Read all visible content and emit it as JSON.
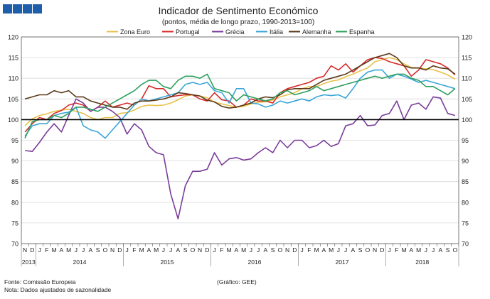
{
  "chart_data": {
    "type": "line",
    "title": "Indicador de Sentimento Económico",
    "subtitle": "(pontos, média de longo prazo, 1990-2013=100)",
    "ylim": [
      70,
      120
    ],
    "y_ticks": [
      70,
      75,
      80,
      85,
      90,
      95,
      100,
      105,
      110,
      115,
      120
    ],
    "reference_line": 100,
    "month_labels": [
      "N",
      "D",
      "J",
      "F",
      "M",
      "A",
      "M",
      "J",
      "J",
      "A",
      "S",
      "O",
      "N",
      "D",
      "J",
      "F",
      "M",
      "A",
      "M",
      "J",
      "J",
      "A",
      "S",
      "O",
      "N",
      "D",
      "J",
      "F",
      "M",
      "A",
      "M",
      "J",
      "J",
      "A",
      "S",
      "O",
      "N",
      "D",
      "J",
      "F",
      "M",
      "A",
      "M",
      "J",
      "J",
      "A",
      "S",
      "O",
      "N",
      "D",
      "J",
      "F",
      "M",
      "A",
      "M",
      "J",
      "J",
      "A",
      "S",
      "O"
    ],
    "years": [
      {
        "label": "2013",
        "start": 0,
        "end": 2
      },
      {
        "label": "2014",
        "start": 2,
        "end": 14
      },
      {
        "label": "2015",
        "start": 14,
        "end": 26
      },
      {
        "label": "2016",
        "start": 26,
        "end": 38
      },
      {
        "label": "2017",
        "start": 38,
        "end": 50
      },
      {
        "label": "2018",
        "start": 50,
        "end": 60
      }
    ],
    "series": [
      {
        "name": "Zona Euro",
        "color": "#e8c24a",
        "values": [
          98.5,
          100.2,
          101.0,
          101.4,
          102.0,
          102.3,
          102.5,
          102.0,
          101.5,
          100.5,
          100.0,
          100.5,
          100.5,
          101.5,
          101.7,
          102.3,
          103.2,
          103.5,
          103.4,
          103.5,
          104.0,
          104.8,
          105.7,
          106.0,
          105.7,
          105.3,
          104.2,
          103.8,
          103.4,
          103.0,
          103.2,
          103.8,
          104.2,
          104.3,
          104.7,
          105.5,
          106.0,
          106.5,
          107.5,
          108.0,
          108.0,
          108.7,
          109.3,
          109.6,
          110.4,
          111.0,
          111.8,
          112.5,
          114.0,
          114.5,
          115.0,
          114.5,
          113.5,
          112.6,
          112.5,
          112.3,
          112.1,
          111.5,
          110.8,
          109.8
        ]
      },
      {
        "name": "Portugal",
        "color": "#d62b2b",
        "values": [
          97.0,
          99.0,
          100.5,
          100.0,
          101.5,
          102.2,
          103.5,
          104.0,
          103.5,
          102.0,
          103.0,
          104.5,
          103.0,
          103.5,
          104.0,
          103.5,
          105.0,
          108.2,
          107.5,
          107.5,
          105.5,
          105.8,
          106.0,
          106.0,
          105.0,
          104.5,
          106.5,
          104.8,
          104.5,
          103.0,
          103.5,
          105.0,
          104.5,
          104.5,
          104.0,
          106.5,
          107.5,
          108.0,
          108.5,
          109.0,
          110.0,
          110.5,
          113.0,
          112.0,
          113.5,
          111.5,
          113.0,
          114.5,
          115.0,
          114.8,
          114.0,
          113.5,
          113.0,
          110.5,
          112.0,
          114.5,
          114.0,
          113.5,
          112.5,
          110.8
        ]
      },
      {
        "name": "Grécia",
        "color": "#7a3d9a",
        "values": [
          92.5,
          92.3,
          94.5,
          97.0,
          99.0,
          97.0,
          101.0,
          105.0,
          104.0,
          102.0,
          103.0,
          103.0,
          102.0,
          100.5,
          96.5,
          99.0,
          97.5,
          93.5,
          92.0,
          91.5,
          82.0,
          76.0,
          84.0,
          87.5,
          87.5,
          88.0,
          92.0,
          89.0,
          90.5,
          90.8,
          90.2,
          90.5,
          92.0,
          93.2,
          92.0,
          95.0,
          93.2,
          95.0,
          95.0,
          93.2,
          93.7,
          95.0,
          93.5,
          94.2,
          98.5,
          99.0,
          101.0,
          98.5,
          98.7,
          101.0,
          101.5,
          104.5,
          100.0,
          103.5,
          104.0,
          102.5,
          105.5,
          105.2,
          101.5,
          101.0
        ]
      },
      {
        "name": "Itália",
        "color": "#3aa6d8",
        "values": [
          96.0,
          98.5,
          99.0,
          99.0,
          101.0,
          101.5,
          101.8,
          103.0,
          98.5,
          97.5,
          97.0,
          95.5,
          97.5,
          99.5,
          101.5,
          103.5,
          105.0,
          104.5,
          105.0,
          105.5,
          106.0,
          106.5,
          108.5,
          109.0,
          108.5,
          109.0,
          107.0,
          106.5,
          104.0,
          107.5,
          107.5,
          104.0,
          103.8,
          103.0,
          103.5,
          104.5,
          104.0,
          104.5,
          105.0,
          104.5,
          105.5,
          106.0,
          105.8,
          106.0,
          105.2,
          107.5,
          110.0,
          111.5,
          112.0,
          112.0,
          110.0,
          111.0,
          110.5,
          109.8,
          109.0,
          109.5,
          109.0,
          108.5,
          108.0,
          107.5
        ]
      },
      {
        "name": "Alemanha",
        "color": "#5b3a1a",
        "values": [
          105.0,
          105.5,
          106.0,
          106.0,
          107.0,
          106.5,
          107.0,
          105.5,
          105.5,
          104.5,
          104.0,
          103.5,
          103.0,
          103.0,
          102.5,
          104.0,
          104.5,
          104.5,
          104.7,
          105.0,
          105.5,
          106.5,
          106.3,
          106.0,
          105.7,
          104.7,
          104.3,
          103.2,
          102.8,
          103.0,
          103.5,
          104.0,
          105.0,
          105.5,
          105.3,
          106.0,
          107.2,
          107.5,
          107.5,
          107.5,
          108.5,
          109.5,
          110.0,
          110.5,
          111.0,
          112.0,
          113.0,
          114.0,
          115.0,
          115.5,
          116.0,
          115.0,
          113.0,
          112.5,
          112.5,
          112.0,
          113.0,
          112.5,
          112.3,
          111.0
        ]
      },
      {
        "name": "Espanha",
        "color": "#2e9f5e",
        "values": [
          95.5,
          99.5,
          100.0,
          100.0,
          101.0,
          100.5,
          101.5,
          103.0,
          103.0,
          102.5,
          102.0,
          103.0,
          104.0,
          105.0,
          106.0,
          107.0,
          108.5,
          109.5,
          109.5,
          108.0,
          107.5,
          109.5,
          110.5,
          110.5,
          110.0,
          111.0,
          107.5,
          107.0,
          106.5,
          104.5,
          106.0,
          105.5,
          105.0,
          104.5,
          105.0,
          106.5,
          107.0,
          106.0,
          106.5,
          107.0,
          108.0,
          107.0,
          107.5,
          108.0,
          108.5,
          109.0,
          109.5,
          110.0,
          110.5,
          110.0,
          110.5,
          111.0,
          111.0,
          110.0,
          109.5,
          108.0,
          108.0,
          107.0,
          106.0,
          107.5
        ]
      }
    ],
    "footnotes": {
      "source": "Fonte: Comissão Europeia",
      "note": "Nota: Dados ajustados de sazonalidade",
      "credit": "(Gráfico: GEE)"
    }
  },
  "colors": {
    "logo": "#1f5ea8"
  }
}
